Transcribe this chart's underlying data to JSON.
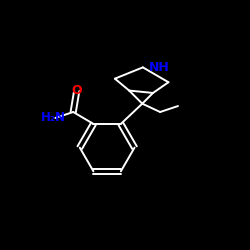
{
  "background_color": "#000000",
  "bond_color": "#ffffff",
  "atom_colors": {
    "O": "#ff0000",
    "N_blue": "#0000ff",
    "C": "#ffffff"
  },
  "label_O": "O",
  "label_NH2": "H₂N",
  "label_NH": "NH",
  "figsize": [
    2.5,
    2.5
  ],
  "dpi": 100
}
